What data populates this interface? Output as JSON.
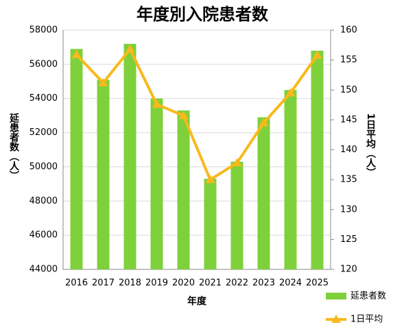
{
  "chart_data": {
    "type": "bar-line",
    "title": "年度別入院患者数",
    "x_label": "年度",
    "y_label": "延患者数（人）",
    "y2_label": "1日平均（人）",
    "categories": [
      "2016",
      "2017",
      "2018",
      "2019",
      "2020",
      "2021",
      "2022",
      "2023",
      "2024",
      "2025"
    ],
    "series": [
      {
        "name": "延患者数",
        "type": "bar",
        "color": "#7ed13a",
        "values": [
          56900,
          55100,
          57200,
          54000,
          53300,
          49300,
          50300,
          52900,
          54500,
          56800
        ]
      },
      {
        "name": "1日平均",
        "type": "line",
        "axis": "y2",
        "color": "#f9b81c",
        "values": [
          155.9,
          151.2,
          156.8,
          147.6,
          145.7,
          135.0,
          137.8,
          144.5,
          149.5,
          155.8
        ]
      }
    ],
    "ylim": [
      44000,
      58000
    ],
    "yticks": [
      44000,
      46000,
      48000,
      50000,
      52000,
      54000,
      56000,
      58000
    ],
    "y2lim": [
      120,
      160
    ],
    "y2ticks": [
      120,
      125,
      130,
      135,
      140,
      145,
      150,
      155,
      160
    ],
    "grid": true,
    "legend": "bottom-right"
  }
}
